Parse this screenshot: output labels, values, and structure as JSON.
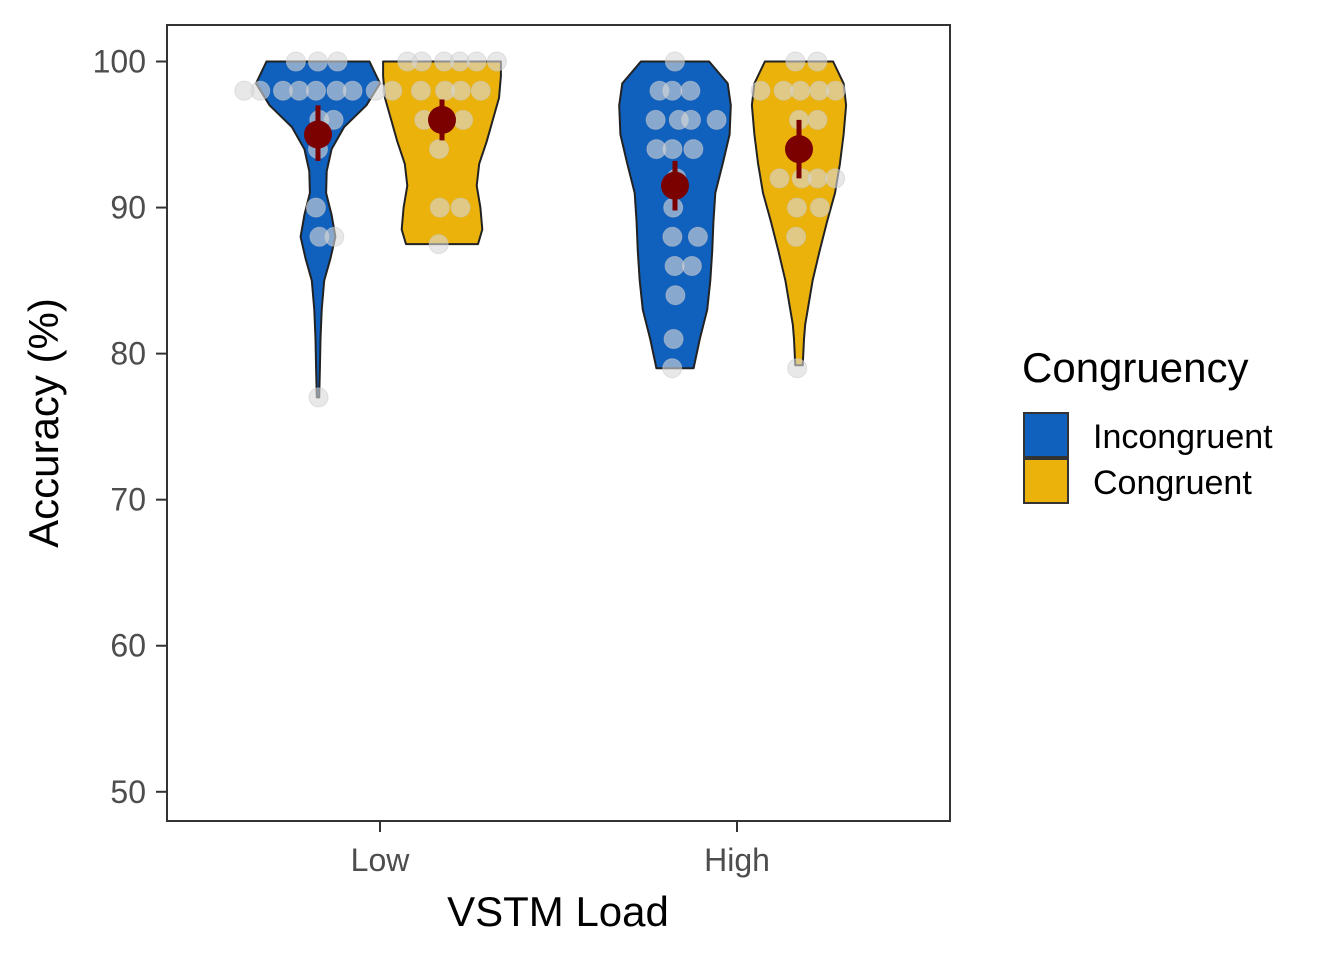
{
  "chart_data": {
    "type": "violin",
    "xlabel": "VSTM Load",
    "ylabel": "Accuracy (%)",
    "ylim": [
      48,
      102.5
    ],
    "yticks": [
      50,
      60,
      70,
      80,
      90,
      100
    ],
    "categories": [
      "Low",
      "High"
    ],
    "grid": false,
    "legend": {
      "title": "Congruency",
      "placement": "right"
    },
    "series": [
      {
        "name": "Incongruent",
        "color": "#1060be",
        "groups": [
          {
            "category": "Low",
            "mean": 95.0,
            "ci_low": 93.2,
            "ci_high": 97.0,
            "density": [
              [
                77.0,
                0.02
              ],
              [
                79.0,
                0.03
              ],
              [
                81.0,
                0.04
              ],
              [
                83.0,
                0.06
              ],
              [
                85.0,
                0.1
              ],
              [
                86.5,
                0.2
              ],
              [
                88.0,
                0.28
              ],
              [
                89.5,
                0.22
              ],
              [
                91.0,
                0.13
              ],
              [
                92.5,
                0.14
              ],
              [
                94.0,
                0.22
              ],
              [
                95.5,
                0.42
              ],
              [
                97.0,
                0.78
              ],
              [
                98.5,
                1.0
              ],
              [
                100.0,
                0.83
              ]
            ],
            "points": [
              100,
              100,
              100,
              98,
              98,
              98,
              98,
              98,
              98,
              98,
              98,
              98,
              96,
              96,
              94,
              90,
              88,
              88,
              77
            ]
          },
          {
            "category": "High",
            "mean": 91.5,
            "ci_low": 89.8,
            "ci_high": 93.2,
            "density": [
              [
                79.0,
                0.3
              ],
              [
                81.0,
                0.4
              ],
              [
                83.0,
                0.52
              ],
              [
                85.0,
                0.57
              ],
              [
                87.0,
                0.6
              ],
              [
                89.0,
                0.62
              ],
              [
                91.0,
                0.65
              ],
              [
                93.0,
                0.77
              ],
              [
                95.0,
                0.88
              ],
              [
                97.0,
                0.9
              ],
              [
                98.5,
                0.85
              ],
              [
                100.0,
                0.55
              ]
            ],
            "points": [
              100,
              98,
              98,
              98,
              96,
              96,
              96,
              96,
              94,
              94,
              94,
              92,
              90,
              88,
              88,
              86,
              86,
              84,
              81,
              79
            ]
          }
        ]
      },
      {
        "name": "Congruent",
        "color": "#ebb20c",
        "groups": [
          {
            "category": "Low",
            "mean": 96.0,
            "ci_low": 94.6,
            "ci_high": 97.4,
            "density": [
              [
                87.5,
                0.58
              ],
              [
                88.5,
                0.65
              ],
              [
                90.0,
                0.62
              ],
              [
                91.5,
                0.56
              ],
              [
                93.0,
                0.6
              ],
              [
                94.5,
                0.72
              ],
              [
                96.0,
                0.82
              ],
              [
                97.5,
                0.92
              ],
              [
                99.0,
                0.95
              ],
              [
                100.0,
                0.95
              ]
            ],
            "points": [
              100,
              100,
              100,
              100,
              100,
              100,
              98,
              98,
              98,
              98,
              96,
              96,
              96,
              94,
              90,
              90,
              87.5
            ]
          },
          {
            "category": "High",
            "mean": 94.0,
            "ci_low": 92.0,
            "ci_high": 96.0,
            "density": [
              [
                79.2,
                0.06
              ],
              [
                80.0,
                0.07
              ],
              [
                81.0,
                0.08
              ],
              [
                82.0,
                0.1
              ],
              [
                83.0,
                0.14
              ],
              [
                85.0,
                0.22
              ],
              [
                87.0,
                0.33
              ],
              [
                89.0,
                0.45
              ],
              [
                91.0,
                0.58
              ],
              [
                93.0,
                0.66
              ],
              [
                95.0,
                0.72
              ],
              [
                97.0,
                0.76
              ],
              [
                98.5,
                0.72
              ],
              [
                100.0,
                0.55
              ]
            ],
            "points": [
              100,
              100,
              98,
              98,
              98,
              98,
              98,
              96,
              96,
              92,
              92,
              92,
              92,
              90,
              90,
              88,
              79
            ]
          }
        ]
      }
    ],
    "summary_point_color": "#7b0000",
    "jitter_point_color": "#d9d9d9"
  }
}
